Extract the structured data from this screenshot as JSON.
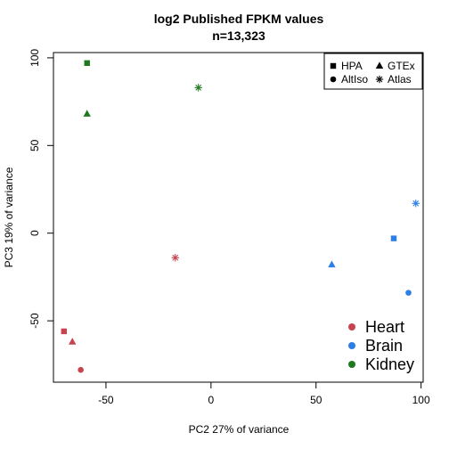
{
  "chart_data": {
    "type": "scatter",
    "title": "log2 Published FPKM values",
    "subtitle": "n=13,323",
    "xlabel": "PC2 27% of variance",
    "ylabel": "PC3 19% of variance",
    "xlim": [
      -75,
      101
    ],
    "ylim": [
      -85,
      103
    ],
    "x_ticks": [
      -50,
      0,
      50,
      100
    ],
    "y_ticks": [
      -50,
      0,
      50,
      100
    ],
    "grid": false,
    "colors": {
      "Heart": "#c8424f",
      "Brain": "#2c7fe6",
      "Kidney": "#1f7a1f"
    },
    "shapes": {
      "HPA": "square",
      "GTEx": "triangle",
      "AltIso": "circle",
      "Atlas": "asterisk"
    },
    "points": [
      {
        "tissue": "Kidney",
        "source": "HPA",
        "x": -59,
        "y": 97
      },
      {
        "tissue": "Kidney",
        "source": "GTEx",
        "x": -59,
        "y": 68
      },
      {
        "tissue": "Kidney",
        "source": "Atlas",
        "x": -6,
        "y": 83
      },
      {
        "tissue": "Heart",
        "source": "Atlas",
        "x": -17,
        "y": -14
      },
      {
        "tissue": "Heart",
        "source": "HPA",
        "x": -70,
        "y": -56
      },
      {
        "tissue": "Heart",
        "source": "GTEx",
        "x": -66,
        "y": -62
      },
      {
        "tissue": "Heart",
        "source": "AltIso",
        "x": -62,
        "y": -78
      },
      {
        "tissue": "Brain",
        "source": "Atlas",
        "x": 97.5,
        "y": 17
      },
      {
        "tissue": "Brain",
        "source": "HPA",
        "x": 87,
        "y": -3
      },
      {
        "tissue": "Brain",
        "source": "GTEx",
        "x": 57.5,
        "y": -18
      },
      {
        "tissue": "Brain",
        "source": "AltIso",
        "x": 94,
        "y": -34
      }
    ],
    "shape_legend": {
      "placement": "top-right",
      "entries": [
        {
          "label": "HPA",
          "shape": "square"
        },
        {
          "label": "GTEx",
          "shape": "triangle"
        },
        {
          "label": "AltIso",
          "shape": "circle"
        },
        {
          "label": "Atlas",
          "shape": "asterisk"
        }
      ]
    },
    "tissue_legend": {
      "placement": "bottom-right",
      "entries": [
        {
          "label": "Heart",
          "color": "#c8424f"
        },
        {
          "label": "Brain",
          "color": "#2c7fe6"
        },
        {
          "label": "Kidney",
          "color": "#1f7a1f"
        }
      ]
    }
  }
}
